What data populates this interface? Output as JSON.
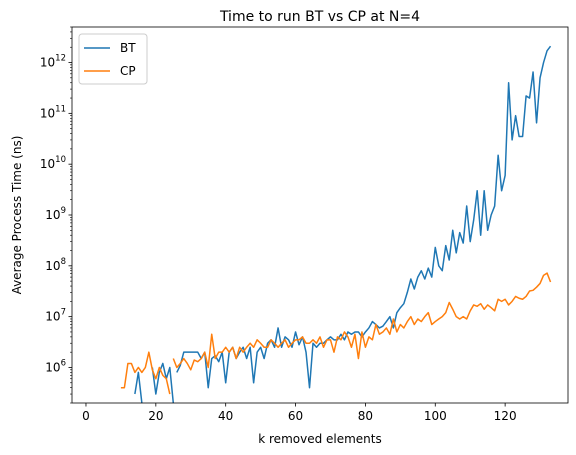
{
  "chart_data": {
    "type": "line",
    "title": "Time to run BT vs CP at N=4",
    "xlabel": "k removed elements",
    "ylabel": "Average Process Time (ns)",
    "xlim": [
      -4,
      138
    ],
    "ylim": [
      200000,
      5000000000000
    ],
    "yscale": "log",
    "grid": false,
    "legend_position": "top-left",
    "x_ticks": [
      0,
      20,
      40,
      60,
      80,
      100,
      120
    ],
    "y_ticks": [
      {
        "value": 1000000,
        "base": "10",
        "exp": "6"
      },
      {
        "value": 10000000,
        "base": "10",
        "exp": "7"
      },
      {
        "value": 100000000,
        "base": "10",
        "exp": "8"
      },
      {
        "value": 1000000000,
        "base": "10",
        "exp": "9"
      },
      {
        "value": 10000000000,
        "base": "10",
        "exp": "10"
      },
      {
        "value": 100000000000,
        "base": "10",
        "exp": "11"
      },
      {
        "value": 1000000000000,
        "base": "10",
        "exp": "12"
      }
    ],
    "series": [
      {
        "name": "BT",
        "color": "#1f77b4",
        "points": [
          [
            4,
            800000
          ],
          [
            4,
            null
          ],
          [
            9,
            800000
          ],
          [
            9,
            null
          ],
          [
            14,
            300000
          ],
          [
            15,
            800000
          ],
          [
            16,
            200000
          ],
          [
            16,
            null
          ],
          [
            19,
            1000000
          ],
          [
            20,
            300000
          ],
          [
            21,
            800000
          ],
          [
            22,
            1200000
          ],
          [
            23,
            600000
          ],
          [
            24,
            1000000
          ],
          [
            25,
            200000
          ],
          [
            25,
            null
          ],
          [
            26,
            800000
          ],
          [
            27,
            1100000
          ],
          [
            28,
            2000000
          ],
          [
            29,
            2000000
          ],
          [
            30,
            2000000
          ],
          [
            31,
            2000000
          ],
          [
            32,
            2000000
          ],
          [
            33,
            1500000
          ],
          [
            34,
            2000000
          ],
          [
            35,
            400000
          ],
          [
            36,
            1500000
          ],
          [
            37,
            1700000
          ],
          [
            38,
            1300000
          ],
          [
            39,
            2000000
          ],
          [
            40,
            500000
          ],
          [
            41,
            2000000
          ],
          [
            42,
            2500000
          ],
          [
            43,
            1500000
          ],
          [
            44,
            2000000
          ],
          [
            45,
            2500000
          ],
          [
            46,
            1500000
          ],
          [
            47,
            2500000
          ],
          [
            48,
            500000
          ],
          [
            49,
            2000000
          ],
          [
            50,
            2500000
          ],
          [
            51,
            1500000
          ],
          [
            52,
            3000000
          ],
          [
            53,
            3500000
          ],
          [
            54,
            2500000
          ],
          [
            55,
            6000000
          ],
          [
            56,
            2500000
          ],
          [
            57,
            4000000
          ],
          [
            58,
            3500000
          ],
          [
            59,
            2500000
          ],
          [
            60,
            5000000
          ],
          [
            61,
            2800000
          ],
          [
            62,
            4000000
          ],
          [
            63,
            2000000
          ],
          [
            64,
            400000
          ],
          [
            65,
            3000000
          ],
          [
            66,
            2500000
          ],
          [
            67,
            3000000
          ],
          [
            68,
            3000000
          ],
          [
            69,
            3500000
          ],
          [
            70,
            4000000
          ],
          [
            71,
            3500000
          ],
          [
            72,
            3500000
          ],
          [
            73,
            4500000
          ],
          [
            74,
            3500000
          ],
          [
            75,
            5000000
          ],
          [
            76,
            4500000
          ],
          [
            77,
            5000000
          ],
          [
            78,
            5000000
          ],
          [
            79,
            4000000
          ],
          [
            80,
            5000000
          ],
          [
            81,
            6000000
          ],
          [
            82,
            8000000
          ],
          [
            83,
            7000000
          ],
          [
            84,
            6000000
          ],
          [
            85,
            6500000
          ],
          [
            86,
            8000000
          ],
          [
            87,
            10000000
          ],
          [
            88,
            6000000
          ],
          [
            89,
            12000000
          ],
          [
            90,
            15000000
          ],
          [
            91,
            18000000
          ],
          [
            92,
            30000000
          ],
          [
            93,
            55000000
          ],
          [
            94,
            35000000
          ],
          [
            95,
            60000000
          ],
          [
            96,
            80000000
          ],
          [
            97,
            55000000
          ],
          [
            98,
            90000000
          ],
          [
            99,
            60000000
          ],
          [
            100,
            230000000
          ],
          [
            101,
            100000000
          ],
          [
            102,
            80000000
          ],
          [
            103,
            250000000
          ],
          [
            104,
            130000000
          ],
          [
            105,
            500000000
          ],
          [
            106,
            180000000
          ],
          [
            107,
            450000000
          ],
          [
            108,
            280000000
          ],
          [
            109,
            1500000000
          ],
          [
            110,
            300000000
          ],
          [
            111,
            800000000
          ],
          [
            112,
            3000000000
          ],
          [
            113,
            400000000
          ],
          [
            114,
            3000000000
          ],
          [
            115,
            500000000
          ],
          [
            116,
            1000000000
          ],
          [
            117,
            1500000000
          ],
          [
            118,
            15000000000
          ],
          [
            119,
            3000000000
          ],
          [
            120,
            6000000000
          ],
          [
            121,
            400000000000
          ],
          [
            122,
            30000000000
          ],
          [
            123,
            90000000000
          ],
          [
            124,
            35000000000
          ],
          [
            125,
            35000000000
          ],
          [
            126,
            220000000000
          ],
          [
            127,
            200000000000
          ],
          [
            128,
            650000000000
          ],
          [
            129,
            65000000000
          ],
          [
            130,
            500000000000
          ],
          [
            131,
            1000000000000
          ],
          [
            132,
            1700000000000
          ],
          [
            133,
            2100000000000
          ]
        ]
      },
      {
        "name": "CP",
        "color": "#ff7f0e",
        "points": [
          [
            4,
            800000
          ],
          [
            4,
            null
          ],
          [
            7,
            400000
          ],
          [
            7,
            null
          ],
          [
            8,
            300000
          ],
          [
            8,
            null
          ],
          [
            10,
            400000
          ],
          [
            11,
            400000
          ],
          [
            12,
            1200000
          ],
          [
            13,
            1200000
          ],
          [
            14,
            800000
          ],
          [
            15,
            1000000
          ],
          [
            16,
            800000
          ],
          [
            17,
            1000000
          ],
          [
            18,
            2000000
          ],
          [
            19,
            900000
          ],
          [
            20,
            600000
          ],
          [
            21,
            1000000
          ],
          [
            22,
            700000
          ],
          [
            23,
            600000
          ],
          [
            24,
            300000
          ],
          [
            24,
            null
          ],
          [
            25,
            1500000
          ],
          [
            26,
            1000000
          ],
          [
            27,
            1200000
          ],
          [
            28,
            1500000
          ],
          [
            29,
            1200000
          ],
          [
            30,
            900000
          ],
          [
            31,
            1400000
          ],
          [
            32,
            1300000
          ],
          [
            33,
            1500000
          ],
          [
            34,
            2000000
          ],
          [
            35,
            1000000
          ],
          [
            36,
            4500000
          ],
          [
            37,
            1500000
          ],
          [
            38,
            2000000
          ],
          [
            39,
            2000000
          ],
          [
            40,
            2500000
          ],
          [
            41,
            2000000
          ],
          [
            42,
            2500000
          ],
          [
            43,
            1500000
          ],
          [
            44,
            2500000
          ],
          [
            45,
            2000000
          ],
          [
            46,
            2500000
          ],
          [
            47,
            3000000
          ],
          [
            48,
            2500000
          ],
          [
            49,
            3500000
          ],
          [
            50,
            3000000
          ],
          [
            51,
            2500000
          ],
          [
            52,
            2500000
          ],
          [
            53,
            3500000
          ],
          [
            54,
            3000000
          ],
          [
            55,
            2500000
          ],
          [
            56,
            3000000
          ],
          [
            57,
            3500000
          ],
          [
            58,
            2500000
          ],
          [
            59,
            3000000
          ],
          [
            60,
            3500000
          ],
          [
            61,
            3500000
          ],
          [
            62,
            4000000
          ],
          [
            63,
            3000000
          ],
          [
            64,
            3000000
          ],
          [
            65,
            3500000
          ],
          [
            66,
            3000000
          ],
          [
            67,
            4000000
          ],
          [
            68,
            2500000
          ],
          [
            69,
            3500000
          ],
          [
            70,
            3500000
          ],
          [
            71,
            2000000
          ],
          [
            72,
            4000000
          ],
          [
            73,
            3500000
          ],
          [
            74,
            5000000
          ],
          [
            75,
            4000000
          ],
          [
            76,
            2500000
          ],
          [
            77,
            4500000
          ],
          [
            78,
            1500000
          ],
          [
            79,
            5000000
          ],
          [
            80,
            2500000
          ],
          [
            81,
            4000000
          ],
          [
            82,
            3500000
          ],
          [
            83,
            7000000
          ],
          [
            84,
            4500000
          ],
          [
            85,
            5000000
          ],
          [
            86,
            6000000
          ],
          [
            87,
            4500000
          ],
          [
            88,
            9000000
          ],
          [
            89,
            5000000
          ],
          [
            90,
            7000000
          ],
          [
            91,
            6000000
          ],
          [
            92,
            8000000
          ],
          [
            93,
            10000000
          ],
          [
            94,
            7000000
          ],
          [
            95,
            9000000
          ],
          [
            96,
            8000000
          ],
          [
            97,
            10000000
          ],
          [
            98,
            12000000
          ],
          [
            99,
            7000000
          ],
          [
            100,
            8000000
          ],
          [
            101,
            9000000
          ],
          [
            102,
            10000000
          ],
          [
            103,
            12000000
          ],
          [
            104,
            19000000
          ],
          [
            105,
            14000000
          ],
          [
            106,
            10000000
          ],
          [
            107,
            9000000
          ],
          [
            108,
            10000000
          ],
          [
            109,
            9000000
          ],
          [
            110,
            13000000
          ],
          [
            111,
            17000000
          ],
          [
            112,
            16000000
          ],
          [
            113,
            18000000
          ],
          [
            114,
            14000000
          ],
          [
            115,
            17000000
          ],
          [
            116,
            15000000
          ],
          [
            117,
            13000000
          ],
          [
            118,
            22000000
          ],
          [
            119,
            20000000
          ],
          [
            120,
            22000000
          ],
          [
            121,
            17000000
          ],
          [
            122,
            20000000
          ],
          [
            123,
            25000000
          ],
          [
            124,
            23000000
          ],
          [
            125,
            22000000
          ],
          [
            126,
            25000000
          ],
          [
            127,
            32000000
          ],
          [
            128,
            33000000
          ],
          [
            129,
            38000000
          ],
          [
            130,
            45000000
          ],
          [
            131,
            65000000
          ],
          [
            132,
            72000000
          ],
          [
            133,
            48000000
          ]
        ]
      }
    ]
  }
}
